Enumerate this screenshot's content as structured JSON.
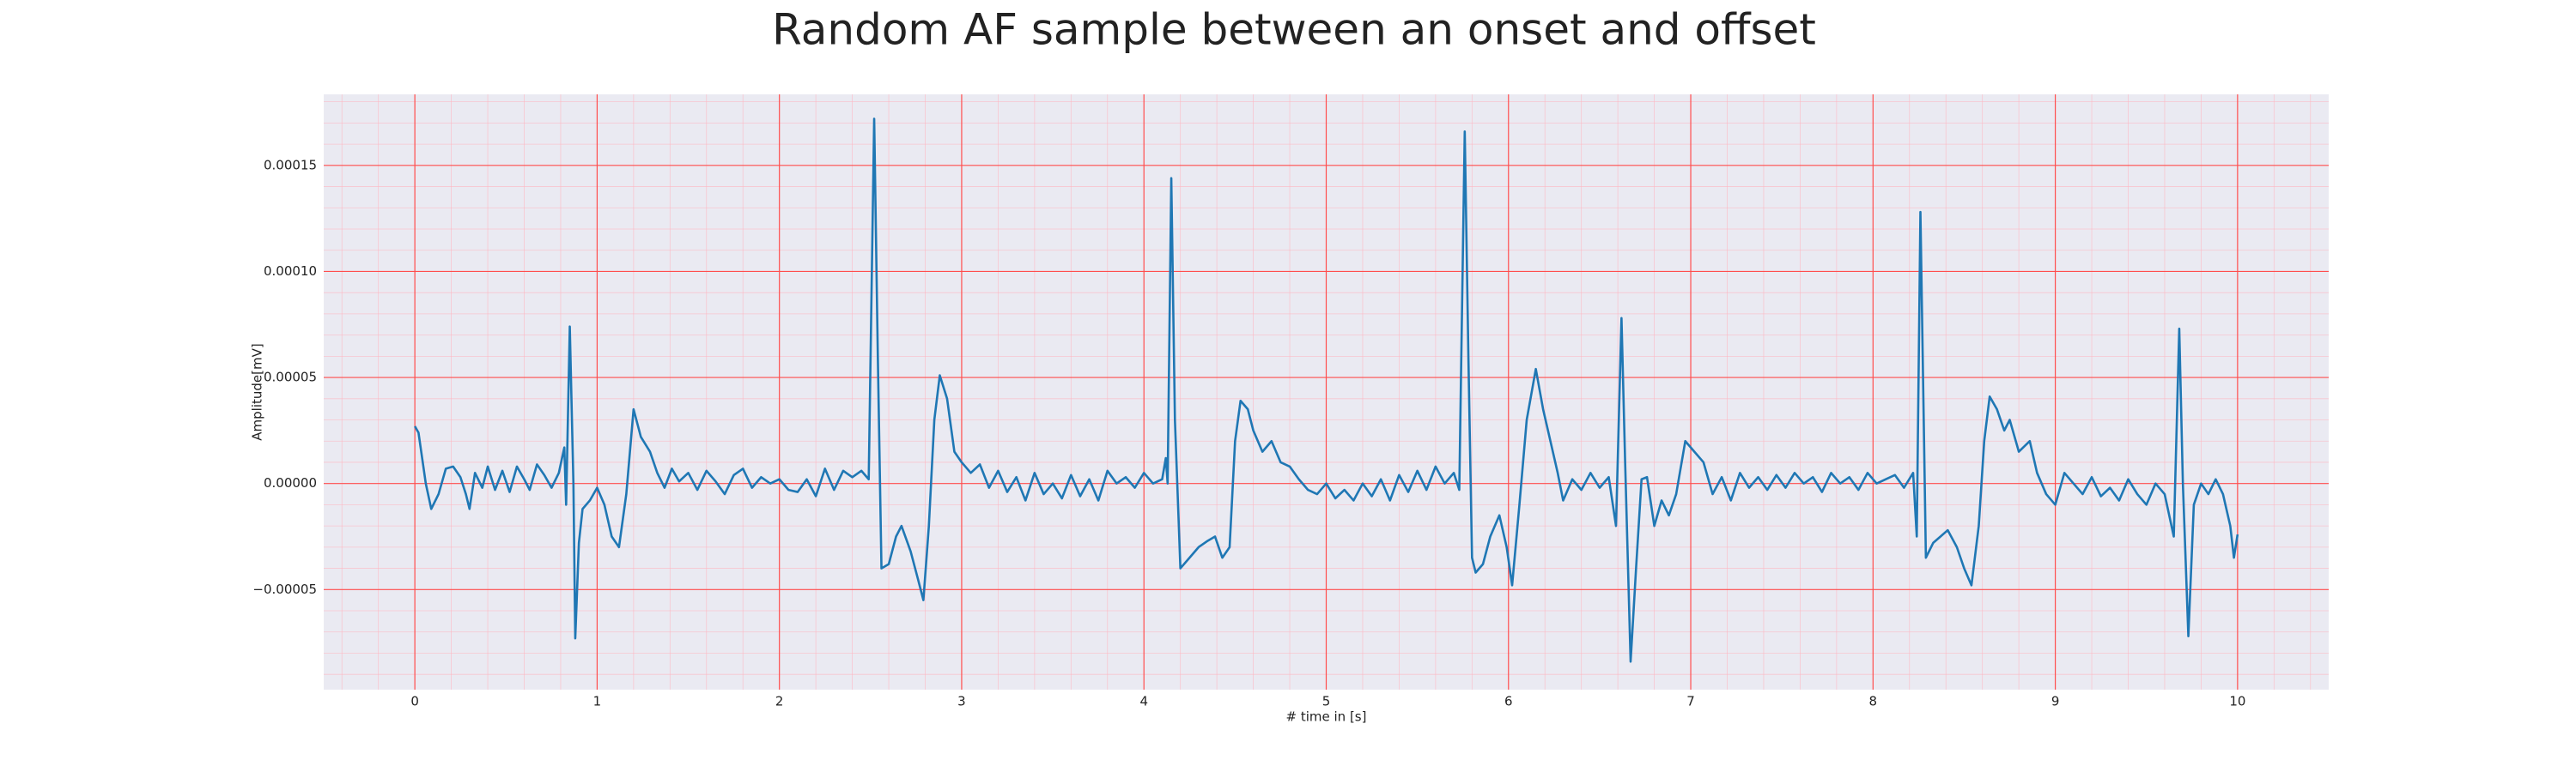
{
  "chart_data": {
    "type": "line",
    "title": "Random AF sample between an onset and offset",
    "x_label": "# time in [s]",
    "y_label": "Amplitude[mV]",
    "color": "#1f77b4",
    "grid": true,
    "minor_grid": true,
    "xlim": [
      -0.5,
      10.5
    ],
    "ylim": [
      -9.72e-05,
      0.0001835
    ],
    "xticks": [
      0,
      1,
      2,
      3,
      4,
      5,
      6,
      7,
      8,
      9,
      10
    ],
    "yticks": [
      {
        "value": -5e-05,
        "label": "−0.00005"
      },
      {
        "value": 0,
        "label": "0.00000"
      },
      5e-05,
      {
        "value": 0.0001,
        "label": "0.00010"
      },
      0.00015
    ],
    "x": [
      0,
      0.02,
      0.06,
      0.09,
      0.13,
      0.17,
      0.21,
      0.25,
      0.28,
      0.3,
      0.33,
      0.37,
      0.4,
      0.44,
      0.48,
      0.52,
      0.56,
      0.6,
      0.63,
      0.67,
      0.71,
      0.75,
      0.79,
      0.82,
      0.83,
      0.85,
      0.87,
      0.88,
      0.9,
      0.92,
      0.96,
      1.0,
      1.04,
      1.08,
      1.12,
      1.16,
      1.2,
      1.24,
      1.29,
      1.33,
      1.37,
      1.41,
      1.45,
      1.5,
      1.55,
      1.6,
      1.65,
      1.7,
      1.75,
      1.8,
      1.85,
      1.9,
      1.95,
      2.0,
      2.05,
      2.1,
      2.15,
      2.2,
      2.25,
      2.3,
      2.35,
      2.4,
      2.45,
      2.49,
      2.52,
      2.54,
      2.56,
      2.6,
      2.64,
      2.67,
      2.72,
      2.76,
      2.79,
      2.82,
      2.85,
      2.88,
      2.92,
      2.96,
      3.0,
      3.05,
      3.1,
      3.15,
      3.2,
      3.25,
      3.3,
      3.35,
      3.4,
      3.45,
      3.5,
      3.55,
      3.6,
      3.65,
      3.7,
      3.75,
      3.8,
      3.85,
      3.9,
      3.95,
      4.0,
      4.05,
      4.1,
      4.12,
      4.13,
      4.15,
      4.17,
      4.2,
      4.25,
      4.3,
      4.35,
      4.39,
      4.43,
      4.47,
      4.5,
      4.53,
      4.57,
      4.6,
      4.65,
      4.7,
      4.75,
      4.8,
      4.85,
      4.9,
      4.95,
      5.0,
      5.05,
      5.1,
      5.15,
      5.2,
      5.25,
      5.3,
      5.35,
      5.4,
      5.45,
      5.5,
      5.55,
      5.6,
      5.65,
      5.7,
      5.73,
      5.76,
      5.78,
      5.8,
      5.82,
      5.86,
      5.9,
      5.95,
      5.99,
      6.02,
      6.06,
      6.1,
      6.15,
      6.19,
      6.23,
      6.27,
      6.3,
      6.35,
      6.4,
      6.45,
      6.5,
      6.55,
      6.59,
      6.62,
      6.64,
      6.67,
      6.7,
      6.73,
      6.76,
      6.8,
      6.84,
      6.88,
      6.92,
      6.97,
      7.02,
      7.07,
      7.12,
      7.17,
      7.22,
      7.27,
      7.32,
      7.37,
      7.42,
      7.47,
      7.52,
      7.57,
      7.62,
      7.67,
      7.72,
      7.77,
      7.82,
      7.87,
      7.92,
      7.97,
      8.02,
      8.07,
      8.12,
      8.17,
      8.22,
      8.24,
      8.26,
      8.28,
      8.29,
      8.33,
      8.37,
      8.41,
      8.46,
      8.5,
      8.54,
      8.58,
      8.61,
      8.64,
      8.68,
      8.72,
      8.75,
      8.8,
      8.86,
      8.9,
      8.95,
      9.0,
      9.05,
      9.1,
      9.15,
      9.2,
      9.25,
      9.3,
      9.35,
      9.4,
      9.45,
      9.5,
      9.55,
      9.6,
      9.65,
      9.68,
      9.7,
      9.73,
      9.76,
      9.8,
      9.84,
      9.88,
      9.92,
      9.96,
      9.98,
      10.0
    ],
    "values": [
      2.7e-05,
      2.4e-05,
      0,
      -1.2e-05,
      -5e-06,
      7e-06,
      8e-06,
      3e-06,
      -5e-06,
      -1.2e-05,
      5e-06,
      -2e-06,
      8e-06,
      -3e-06,
      6e-06,
      -4e-06,
      8e-06,
      2e-06,
      -3e-06,
      9e-06,
      4e-06,
      -2e-06,
      5e-06,
      1.7e-05,
      -1e-05,
      7.4e-05,
      0,
      -7.3e-05,
      -2.8e-05,
      -1.2e-05,
      -8e-06,
      -2e-06,
      -1e-05,
      -2.5e-05,
      -3e-05,
      -5e-06,
      3.5e-05,
      2.2e-05,
      1.5e-05,
      5e-06,
      -2e-06,
      7e-06,
      1e-06,
      5e-06,
      -3e-06,
      6e-06,
      1e-06,
      -5e-06,
      4e-06,
      7e-06,
      -2e-06,
      3e-06,
      0,
      2e-06,
      -3e-06,
      -4e-06,
      2e-06,
      -6e-06,
      7e-06,
      -3e-06,
      6e-06,
      3e-06,
      6e-06,
      2e-06,
      0.000172,
      6e-05,
      -4e-05,
      -3.8e-05,
      -2.5e-05,
      -2e-05,
      -3.2e-05,
      -4.5e-05,
      -5.5e-05,
      -2e-05,
      3e-05,
      5.1e-05,
      4e-05,
      1.5e-05,
      1e-05,
      5e-06,
      9e-06,
      -2e-06,
      6e-06,
      -4e-06,
      3e-06,
      -8e-06,
      5e-06,
      -5e-06,
      0,
      -7e-06,
      4e-06,
      -6e-06,
      2e-06,
      -8e-06,
      6e-06,
      0,
      3e-06,
      -2e-06,
      5e-06,
      0,
      2e-06,
      1.2e-05,
      0,
      0.000144,
      3e-05,
      -4e-05,
      -3.5e-05,
      -3e-05,
      -2.7e-05,
      -2.5e-05,
      -3.5e-05,
      -3e-05,
      2e-05,
      3.9e-05,
      3.5e-05,
      2.5e-05,
      1.5e-05,
      2e-05,
      1e-05,
      8e-06,
      2e-06,
      -3e-06,
      -5e-06,
      0,
      -7e-06,
      -3e-06,
      -8e-06,
      0,
      -6e-06,
      2e-06,
      -8e-06,
      4e-06,
      -4e-06,
      6e-06,
      -3e-06,
      8e-06,
      0,
      5e-06,
      -3e-06,
      0.000166,
      6e-05,
      -3.5e-05,
      -4.2e-05,
      -3.8e-05,
      -2.5e-05,
      -1.5e-05,
      -3e-05,
      -4.8e-05,
      -1e-05,
      3e-05,
      5.4e-05,
      3.5e-05,
      2e-05,
      5e-06,
      -8e-06,
      2e-06,
      -3e-06,
      5e-06,
      -2e-06,
      3e-06,
      -2e-05,
      7.8e-05,
      1e-05,
      -8.4e-05,
      -4e-05,
      2e-06,
      3e-06,
      -2e-05,
      -8e-06,
      -1.5e-05,
      -5e-06,
      2e-05,
      1.5e-05,
      1e-05,
      -5e-06,
      3e-06,
      -8e-06,
      5e-06,
      -2e-06,
      3e-06,
      -3e-06,
      4e-06,
      -2e-06,
      5e-06,
      0,
      3e-06,
      -4e-06,
      5e-06,
      0,
      3e-06,
      -3e-06,
      5e-06,
      0,
      2e-06,
      4e-06,
      -2e-06,
      5e-06,
      -2.5e-05,
      0.000128,
      2e-05,
      -3.5e-05,
      -2.8e-05,
      -2.5e-05,
      -2.2e-05,
      -3e-05,
      -4e-05,
      -4.8e-05,
      -2e-05,
      2e-05,
      4.1e-05,
      3.5e-05,
      2.5e-05,
      3e-05,
      1.5e-05,
      2e-05,
      5e-06,
      -5e-06,
      -1e-05,
      5e-06,
      0,
      -5e-06,
      3e-06,
      -6e-06,
      -2e-06,
      -8e-06,
      2e-06,
      -5e-06,
      -1e-05,
      0,
      -5e-06,
      -2.5e-05,
      7.3e-05,
      0,
      -7.2e-05,
      -1e-05,
      0,
      -5e-06,
      2e-06,
      -5e-06,
      -2e-05,
      -3.5e-05,
      -2.4e-05
    ]
  }
}
